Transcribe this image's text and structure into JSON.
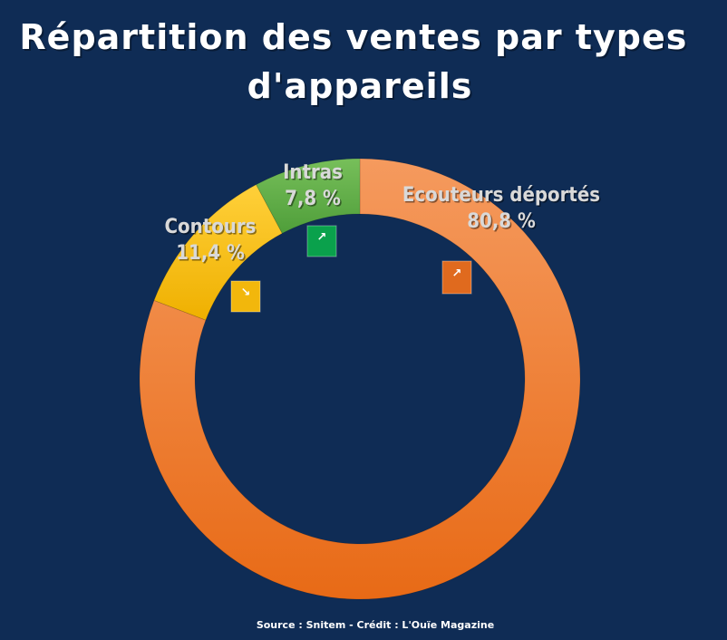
{
  "chart_data": {
    "type": "pie",
    "variant": "donut",
    "title": "Répartition des ventes par types d'appareils",
    "title_lines": [
      "Répartition des ventes par types",
      "d'appareils"
    ],
    "slices": [
      {
        "label": "Ecouteurs déportés",
        "value": 80.8,
        "value_label": "80,8 %",
        "color": "#f07a2a",
        "trend": "up",
        "trend_badge_color": "#e06a1e"
      },
      {
        "label": "Contours",
        "value": 11.4,
        "value_label": "11,4 %",
        "color": "#f5bc10",
        "trend": "down",
        "trend_badge_color": "#f2b70c"
      },
      {
        "label": "Intras",
        "value": 7.8,
        "value_label": "7,8 %",
        "color": "#5fae44",
        "trend": "up",
        "trend_badge_color": "#0aa14c"
      }
    ],
    "legend": "none",
    "source": "Source : Snitem - Crédit : L'Ouïe Magazine"
  },
  "colors": {
    "background": "#0f2c55",
    "title": "#ffffff",
    "labels": "#d9d9d9"
  }
}
